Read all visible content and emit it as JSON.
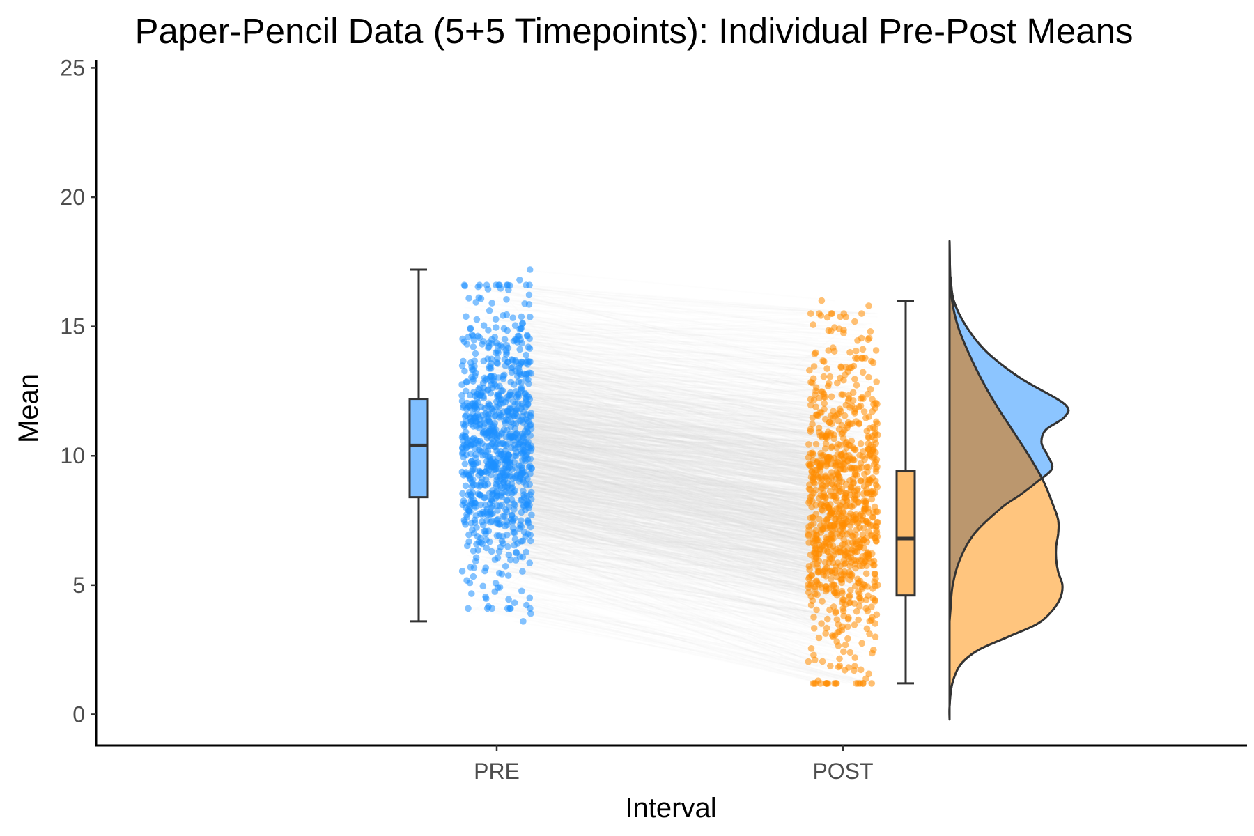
{
  "chart_data": {
    "type": "raincloud",
    "title": "Paper-Pencil Data (5+5 Timepoints): Individual Pre-Post Means",
    "xlabel": "Interval",
    "ylabel": "Mean",
    "categories": [
      "PRE",
      "POST"
    ],
    "ylim": [
      -1.2,
      25.2
    ],
    "yticks": [
      0,
      5,
      10,
      15,
      20,
      25
    ],
    "grid": false,
    "legend": "none",
    "series": [
      {
        "category": "PRE",
        "color": "#1e90ff",
        "fill": "#80bfff",
        "box": {
          "min": 3.6,
          "q1": 8.4,
          "median": 10.4,
          "q3": 12.2,
          "max": 17.2
        },
        "points_range": [
          3.6,
          17.2
        ],
        "density": [
          [
            16.9,
            0.5
          ],
          [
            16,
            2
          ],
          [
            15,
            8
          ],
          [
            14,
            18
          ],
          [
            13,
            34
          ],
          [
            12,
            55
          ],
          [
            11.5,
            55
          ],
          [
            11,
            46
          ],
          [
            10.5,
            44
          ],
          [
            10,
            47
          ],
          [
            9.5,
            49
          ],
          [
            9,
            42
          ],
          [
            8.5,
            34
          ],
          [
            8,
            25
          ],
          [
            7,
            12
          ],
          [
            6,
            5
          ],
          [
            5,
            1.5
          ],
          [
            4,
            0.4
          ],
          [
            3.6,
            0
          ]
        ]
      },
      {
        "category": "POST",
        "color": "#ff8c00",
        "fill": "#ffbf70",
        "box": {
          "min": 1.2,
          "q1": 4.6,
          "median": 6.8,
          "q3": 9.4,
          "max": 16
        },
        "points_range": [
          1.2,
          16
        ],
        "density": [
          [
            18.3,
            0
          ],
          [
            17,
            0.3
          ],
          [
            16,
            1.2
          ],
          [
            15,
            4
          ],
          [
            14,
            9
          ],
          [
            13,
            15
          ],
          [
            12,
            22
          ],
          [
            11,
            30
          ],
          [
            10,
            38
          ],
          [
            9,
            45
          ],
          [
            8,
            50
          ],
          [
            7.5,
            52
          ],
          [
            7,
            52
          ],
          [
            6.5,
            51
          ],
          [
            6,
            51
          ],
          [
            5.5,
            52
          ],
          [
            5,
            54
          ],
          [
            4.5,
            53
          ],
          [
            4,
            49
          ],
          [
            3.5,
            42
          ],
          [
            3,
            28
          ],
          [
            2.5,
            14
          ],
          [
            2,
            6
          ],
          [
            1.5,
            2.5
          ],
          [
            1,
            0.8
          ],
          [
            0.3,
            0
          ],
          [
            -0.2,
            0
          ]
        ]
      }
    ]
  }
}
